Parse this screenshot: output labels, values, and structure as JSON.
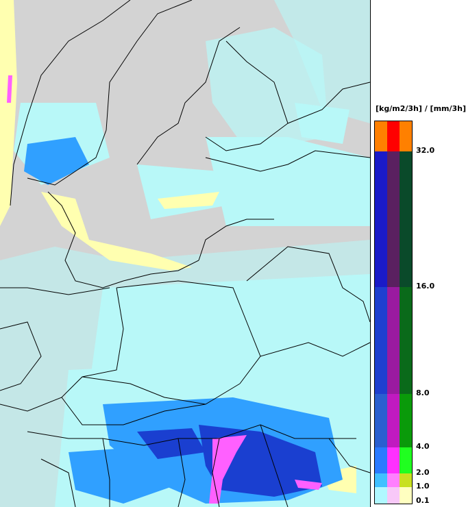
{
  "legend": {
    "units": "[kg/m2/3h] / [mm/3h]",
    "ticks": [
      "32.0",
      "16.0",
      "8.0",
      "4.0",
      "2.0",
      "1.0",
      "0.1"
    ],
    "bands": [
      {
        "colors": [
          "#ff8000",
          "#ff0000",
          "#ff8000"
        ]
      },
      {
        "colors": [
          "#1a1ac8",
          "#5a2060",
          "#0a4a2a"
        ]
      },
      {
        "colors": [
          "#1e3fd0",
          "#9a1aa0",
          "#0a6a1a"
        ]
      },
      {
        "colors": [
          "#2a5fd0",
          "#c01ac0",
          "#0a9a0a"
        ]
      },
      {
        "colors": [
          "#2a7aff",
          "#ff30ff",
          "#20ff20"
        ]
      },
      {
        "colors": [
          "#40c0ff",
          "#ff80ff",
          "#c8e020"
        ]
      },
      {
        "colors": [
          "#b0f8ff",
          "#f8c8f8",
          "#ffffc0"
        ]
      }
    ]
  },
  "map": {
    "background": "#d3d3d3",
    "precip_colors": {
      "light": "#b8f8f8",
      "snow": "#ffffb0",
      "moderate": "#30a0ff",
      "heavy": "#1a3fd0",
      "mixed": "#ff60ff"
    }
  }
}
